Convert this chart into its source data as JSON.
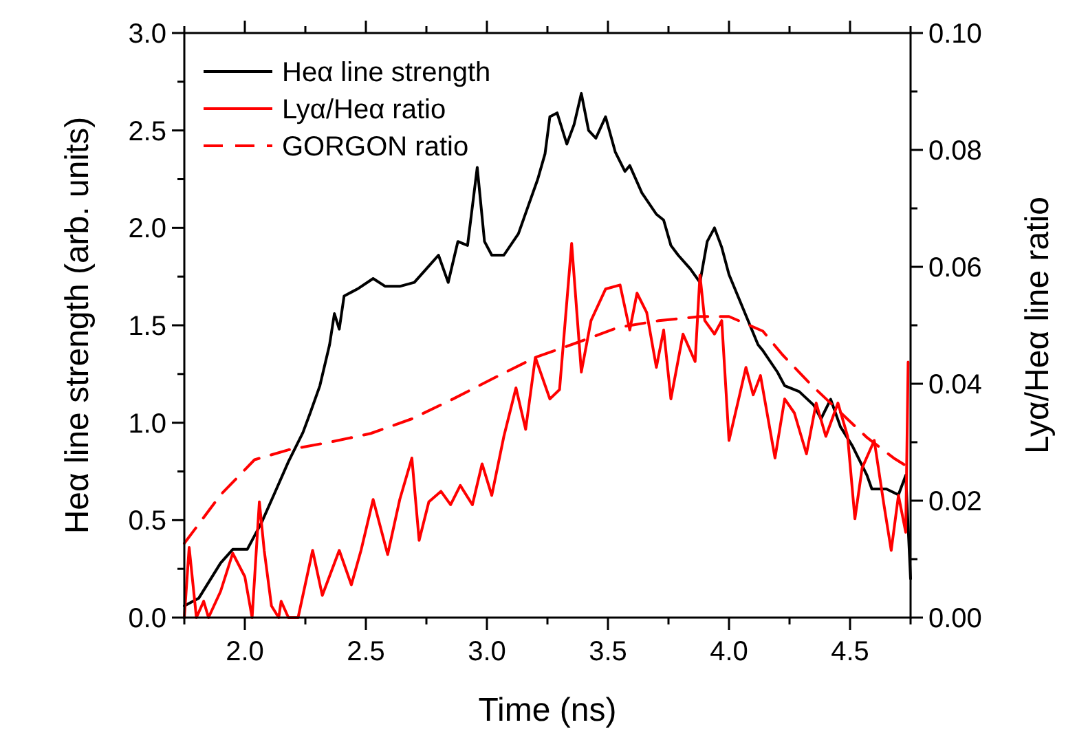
{
  "chart_data": {
    "type": "line",
    "xlabel": "Time (ns)",
    "ylabel": "Heα line strength (arb. units)",
    "y2label": "Lyα/Heα line ratio",
    "legend": "top left",
    "xlim": [
      1.75,
      4.75
    ],
    "xticks": [
      {
        "value": 1.75,
        "label": null
      },
      {
        "value": 2.0,
        "label": "2.0"
      },
      {
        "value": 2.25,
        "label": null
      },
      {
        "value": 2.5,
        "label": "2.5"
      },
      {
        "value": 2.75,
        "label": null
      },
      {
        "value": 3.0,
        "label": "3.0"
      },
      {
        "value": 3.25,
        "label": null
      },
      {
        "value": 3.5,
        "label": "3.5"
      },
      {
        "value": 3.75,
        "label": null
      },
      {
        "value": 4.0,
        "label": "4.0"
      },
      {
        "value": 4.25,
        "label": null
      },
      {
        "value": 4.5,
        "label": "4.5"
      },
      {
        "value": 4.75,
        "label": null
      }
    ],
    "ylim": [
      0,
      3
    ],
    "yticks": [
      {
        "value": 0,
        "label": "0.0"
      },
      {
        "value": 0.25,
        "label": null
      },
      {
        "value": 0.5,
        "label": "0.5"
      },
      {
        "value": 0.75,
        "label": null
      },
      {
        "value": 1,
        "label": "1.0"
      },
      {
        "value": 1.25,
        "label": null
      },
      {
        "value": 1.5,
        "label": "1.5"
      },
      {
        "value": 1.75,
        "label": null
      },
      {
        "value": 2,
        "label": "2.0"
      },
      {
        "value": 2.25,
        "label": null
      },
      {
        "value": 2.5,
        "label": "2.5"
      },
      {
        "value": 2.75,
        "label": null
      },
      {
        "value": 3,
        "label": "3.0"
      }
    ],
    "y2lim": [
      0,
      0.1
    ],
    "y2ticks": [
      {
        "value": 0,
        "label": "0.00"
      },
      {
        "value": 0.01,
        "label": null
      },
      {
        "value": 0.02,
        "label": "0.02"
      },
      {
        "value": 0.03,
        "label": null
      },
      {
        "value": 0.04,
        "label": "0.04"
      },
      {
        "value": 0.05,
        "label": null
      },
      {
        "value": 0.06,
        "label": "0.06"
      },
      {
        "value": 0.07,
        "label": null
      },
      {
        "value": 0.08,
        "label": "0.08"
      },
      {
        "value": 0.09,
        "label": null
      },
      {
        "value": 0.1,
        "label": "0.10"
      }
    ],
    "series": [
      {
        "name": "Heα line strength",
        "color": "#000000",
        "line_style": "solid",
        "x": [
          1.75,
          1.81,
          1.9,
          1.95,
          2.01,
          2.07,
          2.12,
          2.18,
          2.24,
          2.27,
          2.31,
          2.35,
          2.37,
          2.39,
          2.41,
          2.47,
          2.53,
          2.58,
          2.64,
          2.7,
          2.75,
          2.8,
          2.84,
          2.88,
          2.92,
          2.96,
          2.99,
          3.02,
          3.07,
          3.13,
          3.17,
          3.21,
          3.24,
          3.26,
          3.29,
          3.33,
          3.36,
          3.39,
          3.42,
          3.45,
          3.49,
          3.53,
          3.57,
          3.59,
          3.64,
          3.7,
          3.73,
          3.76,
          3.79,
          3.84,
          3.88,
          3.91,
          3.94,
          3.97,
          4.0,
          4.06,
          4.12,
          4.14,
          4.2,
          4.23,
          4.29,
          4.35,
          4.38,
          4.42,
          4.46,
          4.51,
          4.57,
          4.59,
          4.65,
          4.7,
          4.73,
          4.75
        ],
        "values": [
          0.06,
          0.1,
          0.28,
          0.35,
          0.35,
          0.49,
          0.63,
          0.8,
          0.95,
          1.05,
          1.19,
          1.4,
          1.56,
          1.48,
          1.65,
          1.69,
          1.74,
          1.7,
          1.7,
          1.72,
          1.79,
          1.86,
          1.72,
          1.93,
          1.91,
          2.31,
          1.93,
          1.86,
          1.86,
          1.97,
          2.11,
          2.25,
          2.38,
          2.57,
          2.59,
          2.43,
          2.53,
          2.69,
          2.5,
          2.46,
          2.57,
          2.39,
          2.29,
          2.32,
          2.18,
          2.07,
          2.04,
          1.91,
          1.86,
          1.79,
          1.72,
          1.93,
          2.0,
          1.9,
          1.76,
          1.58,
          1.4,
          1.37,
          1.26,
          1.19,
          1.16,
          1.09,
          1.02,
          1.12,
          0.98,
          0.88,
          0.73,
          0.66,
          0.66,
          0.63,
          0.73,
          0.2
        ]
      },
      {
        "name": "Lyα/Heα ratio",
        "color": "#ff0000",
        "line_style": "solid",
        "axis": "y2",
        "x": [
          1.75,
          1.77,
          1.8,
          1.83,
          1.85,
          1.9,
          1.95,
          2.0,
          2.03,
          2.06,
          2.08,
          2.11,
          2.14,
          2.15,
          2.18,
          2.22,
          2.28,
          2.32,
          2.39,
          2.44,
          2.48,
          2.53,
          2.59,
          2.64,
          2.69,
          2.72,
          2.76,
          2.81,
          2.85,
          2.89,
          2.94,
          2.98,
          3.02,
          3.07,
          3.12,
          3.16,
          3.2,
          3.26,
          3.3,
          3.35,
          3.39,
          3.43,
          3.49,
          3.55,
          3.59,
          3.62,
          3.66,
          3.7,
          3.73,
          3.76,
          3.81,
          3.86,
          3.88,
          3.9,
          3.94,
          3.97,
          4.0,
          4.04,
          4.07,
          4.1,
          4.13,
          4.19,
          4.23,
          4.27,
          4.32,
          4.36,
          4.4,
          4.45,
          4.49,
          4.52,
          4.55,
          4.6,
          4.64,
          4.67,
          4.7,
          4.73,
          4.74
        ],
        "values": [
          0,
          0.012,
          0,
          0.0028,
          0,
          0.0045,
          0.011,
          0.007,
          0,
          0.0198,
          0.0115,
          0.002,
          0,
          0.0028,
          0,
          0,
          0.0115,
          0.0038,
          0.0115,
          0.0056,
          0.0115,
          0.0202,
          0.0108,
          0.0202,
          0.0273,
          0.0132,
          0.0198,
          0.0216,
          0.0193,
          0.0226,
          0.0193,
          0.0263,
          0.0209,
          0.031,
          0.0393,
          0.0322,
          0.0445,
          0.0374,
          0.039,
          0.064,
          0.042,
          0.0508,
          0.0562,
          0.0569,
          0.0492,
          0.0555,
          0.0522,
          0.0428,
          0.0492,
          0.0374,
          0.0485,
          0.0438,
          0.0586,
          0.0508,
          0.0485,
          0.0508,
          0.0303,
          0.0374,
          0.0428,
          0.0381,
          0.0414,
          0.0273,
          0.0374,
          0.035,
          0.028,
          0.0367,
          0.031,
          0.0367,
          0.031,
          0.0169,
          0.0256,
          0.0303,
          0.0193,
          0.0115,
          0.0209,
          0.0146,
          0.0437
        ]
      },
      {
        "name": "GORGON ratio",
        "color": "#ff0000",
        "line_style": "dashed",
        "axis": "y2",
        "x": [
          1.75,
          1.9,
          2.04,
          2.18,
          2.35,
          2.52,
          2.69,
          2.86,
          3.03,
          3.2,
          3.37,
          3.54,
          3.71,
          3.88,
          4.0,
          4.14,
          4.22,
          4.34,
          4.45,
          4.57,
          4.68,
          4.73
        ],
        "values": [
          0.0127,
          0.021,
          0.027,
          0.0287,
          0.03,
          0.0315,
          0.034,
          0.0374,
          0.041,
          0.0445,
          0.047,
          0.0496,
          0.0508,
          0.0515,
          0.0515,
          0.049,
          0.045,
          0.0398,
          0.0355,
          0.0308,
          0.0273,
          0.026
        ]
      }
    ]
  }
}
